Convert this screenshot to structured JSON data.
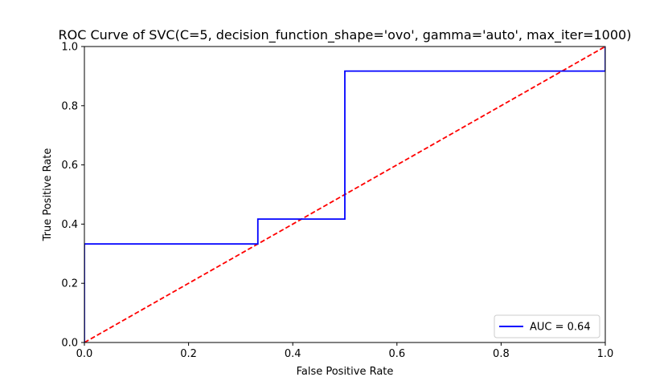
{
  "chart_data": {
    "type": "line",
    "title": "ROC Curve of SVC(C=5, decision_function_shape='ovo', gamma='auto', max_iter=1000)",
    "xlabel": "False Positive Rate",
    "ylabel": "True Positive Rate",
    "xlim": [
      0.0,
      1.0
    ],
    "ylim": [
      0.0,
      1.0
    ],
    "xticks": [
      "0.0",
      "0.2",
      "0.4",
      "0.6",
      "0.8",
      "1.0"
    ],
    "yticks": [
      "0.0",
      "0.2",
      "0.4",
      "0.6",
      "0.8",
      "1.0"
    ],
    "grid": false,
    "legend_position": "lower-right",
    "series": [
      {
        "name": "AUC = 0.64",
        "color": "#0000ff",
        "style": "solid",
        "x": [
          0.0,
          0.0,
          0.333,
          0.333,
          0.5,
          0.5,
          1.0,
          1.0
        ],
        "y": [
          0.0,
          0.333,
          0.333,
          0.417,
          0.417,
          0.917,
          0.917,
          1.0
        ]
      },
      {
        "color": "#ff0000",
        "style": "dashed",
        "x": [
          0.0,
          1.0
        ],
        "y": [
          0.0,
          1.0
        ]
      }
    ]
  }
}
